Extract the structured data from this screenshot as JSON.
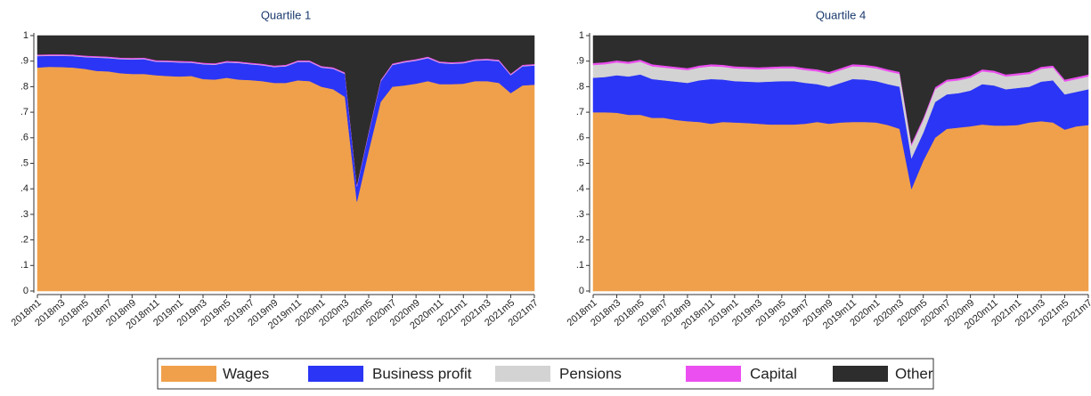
{
  "chart_data": [
    {
      "type": "stacked_area",
      "title": "Quartile 1",
      "categories": [
        "2018m1",
        null,
        "2018m3",
        null,
        "2018m5",
        null,
        "2018m7",
        null,
        "2018m9",
        null,
        "2018m11",
        null,
        "2019m1",
        null,
        "2019m3",
        null,
        "2019m5",
        null,
        "2019m7",
        null,
        "2019m9",
        null,
        "2019m11",
        null,
        "2020m1",
        null,
        "2020m3",
        null,
        "2020m5",
        null,
        "2020m7",
        null,
        "2020m9",
        null,
        "2020m11",
        null,
        "2021m1",
        null,
        "2021m3",
        null,
        "2021m5",
        null,
        "2021m7"
      ],
      "ylim": [
        0,
        1
      ],
      "yticks": [
        0,
        {
          "value": 0.1,
          "label": ".1"
        },
        {
          "value": 0.2,
          "label": ".2"
        },
        {
          "value": 0.3,
          "label": ".3"
        },
        {
          "value": 0.4,
          "label": ".4"
        },
        {
          "value": 0.5,
          "label": ".5"
        },
        {
          "value": 0.6,
          "label": ".6"
        },
        {
          "value": 0.7,
          "label": ".7"
        },
        {
          "value": 0.8,
          "label": ".8"
        },
        {
          "value": 0.9,
          "label": ".9"
        },
        1
      ],
      "series": [
        {
          "name": "Wages",
          "color": "#f0a04b",
          "values": [
            0.875,
            0.878,
            0.877,
            0.875,
            0.87,
            0.862,
            0.86,
            0.853,
            0.85,
            0.85,
            0.845,
            0.842,
            0.84,
            0.842,
            0.83,
            0.828,
            0.835,
            0.828,
            0.826,
            0.822,
            0.815,
            0.815,
            0.825,
            0.822,
            0.8,
            0.79,
            0.76,
            0.35,
            0.55,
            0.74,
            0.8,
            0.805,
            0.812,
            0.822,
            0.81,
            0.81,
            0.812,
            0.822,
            0.822,
            0.815,
            0.775,
            0.805,
            0.808
          ]
        },
        {
          "name": "Business profit",
          "color": "#2b35f5",
          "values": [
            0.045,
            0.043,
            0.044,
            0.045,
            0.046,
            0.052,
            0.052,
            0.055,
            0.057,
            0.058,
            0.053,
            0.055,
            0.055,
            0.052,
            0.058,
            0.058,
            0.06,
            0.065,
            0.062,
            0.062,
            0.062,
            0.065,
            0.072,
            0.075,
            0.075,
            0.08,
            0.09,
            0.06,
            0.07,
            0.08,
            0.085,
            0.09,
            0.09,
            0.09,
            0.083,
            0.08,
            0.08,
            0.08,
            0.082,
            0.085,
            0.07,
            0.075,
            0.075
          ]
        },
        {
          "name": "Pensions",
          "color": "#d3d3d3",
          "values": [
            0.002,
            0.002,
            0.002,
            0.002,
            0.002,
            0.002,
            0.002,
            0.002,
            0.002,
            0.002,
            0.002,
            0.002,
            0.002,
            0.002,
            0.002,
            0.002,
            0.002,
            0.002,
            0.002,
            0.002,
            0.002,
            0.002,
            0.002,
            0.002,
            0.002,
            0.002,
            0.002,
            0.002,
            0.002,
            0.002,
            0.002,
            0.002,
            0.002,
            0.002,
            0.002,
            0.002,
            0.002,
            0.002,
            0.002,
            0.002,
            0.002,
            0.002,
            0.002
          ]
        },
        {
          "name": "Capital",
          "color": "#ec4ff0",
          "values": [
            0.004,
            0.004,
            0.004,
            0.004,
            0.004,
            0.004,
            0.004,
            0.004,
            0.004,
            0.004,
            0.004,
            0.004,
            0.004,
            0.004,
            0.004,
            0.004,
            0.004,
            0.004,
            0.004,
            0.004,
            0.004,
            0.004,
            0.004,
            0.004,
            0.004,
            0.004,
            0.004,
            0.004,
            0.004,
            0.004,
            0.004,
            0.004,
            0.004,
            0.004,
            0.004,
            0.004,
            0.004,
            0.004,
            0.004,
            0.004,
            0.004,
            0.004,
            0.004
          ]
        },
        {
          "name": "Other",
          "color": "#2d2d2d",
          "values": [
            0.074,
            0.073,
            0.073,
            0.074,
            0.078,
            0.08,
            0.082,
            0.086,
            0.087,
            0.086,
            0.096,
            0.097,
            0.099,
            0.1,
            0.106,
            0.108,
            0.099,
            0.101,
            0.106,
            0.11,
            0.117,
            0.114,
            0.097,
            0.097,
            0.119,
            0.124,
            0.144,
            0.584,
            0.374,
            0.174,
            0.109,
            0.099,
            0.092,
            0.082,
            0.101,
            0.104,
            0.102,
            0.092,
            0.09,
            0.094,
            0.149,
            0.114,
            0.111
          ]
        }
      ]
    },
    {
      "type": "stacked_area",
      "title": "Quartile 4",
      "categories": [
        "2018m1",
        null,
        "2018m3",
        null,
        "2018m5",
        null,
        "2018m7",
        null,
        "2018m9",
        null,
        "2018m11",
        null,
        "2019m1",
        null,
        "2019m3",
        null,
        "2019m5",
        null,
        "2019m7",
        null,
        "2019m9",
        null,
        "2019m11",
        null,
        "2020m1",
        null,
        "2020m3",
        null,
        "2020m5",
        null,
        "2020m7",
        null,
        "2020m9",
        null,
        "2020m11",
        null,
        "2021m1",
        null,
        "2021m3",
        null,
        "2021m5",
        null,
        "2021m7"
      ],
      "ylim": [
        0,
        1
      ],
      "yticks": [
        0,
        {
          "value": 0.1,
          "label": ".1"
        },
        {
          "value": 0.2,
          "label": ".2"
        },
        {
          "value": 0.3,
          "label": ".3"
        },
        {
          "value": 0.4,
          "label": ".4"
        },
        {
          "value": 0.5,
          "label": ".5"
        },
        {
          "value": 0.6,
          "label": ".6"
        },
        {
          "value": 0.7,
          "label": ".7"
        },
        {
          "value": 0.8,
          "label": ".8"
        },
        {
          "value": 0.9,
          "label": ".9"
        },
        1
      ],
      "series": [
        {
          "name": "Wages",
          "color": "#f0a04b",
          "values": [
            0.7,
            0.7,
            0.698,
            0.69,
            0.69,
            0.678,
            0.678,
            0.67,
            0.665,
            0.662,
            0.655,
            0.662,
            0.66,
            0.658,
            0.655,
            0.652,
            0.652,
            0.652,
            0.655,
            0.662,
            0.655,
            0.66,
            0.662,
            0.662,
            0.66,
            0.65,
            0.635,
            0.4,
            0.51,
            0.6,
            0.635,
            0.64,
            0.645,
            0.652,
            0.648,
            0.648,
            0.65,
            0.66,
            0.665,
            0.66,
            0.632,
            0.645,
            0.65
          ]
        },
        {
          "name": "Business profit",
          "color": "#2b35f5",
          "values": [
            0.135,
            0.138,
            0.147,
            0.15,
            0.158,
            0.152,
            0.147,
            0.15,
            0.15,
            0.163,
            0.175,
            0.166,
            0.162,
            0.162,
            0.163,
            0.168,
            0.17,
            0.17,
            0.16,
            0.148,
            0.145,
            0.155,
            0.168,
            0.166,
            0.162,
            0.16,
            0.165,
            0.12,
            0.11,
            0.14,
            0.135,
            0.135,
            0.14,
            0.158,
            0.157,
            0.142,
            0.145,
            0.14,
            0.155,
            0.165,
            0.138,
            0.135,
            0.14
          ]
        },
        {
          "name": "Pensions",
          "color": "#d3d3d3",
          "values": [
            0.05,
            0.05,
            0.05,
            0.05,
            0.05,
            0.05,
            0.05,
            0.05,
            0.05,
            0.05,
            0.05,
            0.05,
            0.05,
            0.05,
            0.05,
            0.05,
            0.05,
            0.05,
            0.05,
            0.05,
            0.05,
            0.05,
            0.05,
            0.05,
            0.05,
            0.05,
            0.05,
            0.05,
            0.05,
            0.05,
            0.05,
            0.05,
            0.05,
            0.05,
            0.05,
            0.05,
            0.05,
            0.05,
            0.05,
            0.05,
            0.05,
            0.05,
            0.05
          ]
        },
        {
          "name": "Capital",
          "color": "#ec4ff0",
          "values": [
            0.008,
            0.008,
            0.008,
            0.008,
            0.008,
            0.008,
            0.008,
            0.008,
            0.008,
            0.008,
            0.008,
            0.008,
            0.008,
            0.008,
            0.008,
            0.008,
            0.008,
            0.008,
            0.008,
            0.008,
            0.008,
            0.008,
            0.008,
            0.008,
            0.008,
            0.008,
            0.008,
            0.008,
            0.008,
            0.008,
            0.008,
            0.008,
            0.008,
            0.008,
            0.008,
            0.008,
            0.008,
            0.008,
            0.008,
            0.008,
            0.008,
            0.008,
            0.008
          ]
        },
        {
          "name": "Other",
          "color": "#2d2d2d",
          "values": [
            0.107,
            0.104,
            0.097,
            0.102,
            0.094,
            0.112,
            0.117,
            0.122,
            0.127,
            0.117,
            0.112,
            0.114,
            0.12,
            0.122,
            0.124,
            0.122,
            0.12,
            0.12,
            0.127,
            0.132,
            0.142,
            0.127,
            0.112,
            0.114,
            0.12,
            0.132,
            0.142,
            0.422,
            0.322,
            0.202,
            0.172,
            0.167,
            0.157,
            0.132,
            0.137,
            0.152,
            0.147,
            0.142,
            0.122,
            0.117,
            0.172,
            0.162,
            0.152
          ]
        }
      ]
    }
  ]
}
